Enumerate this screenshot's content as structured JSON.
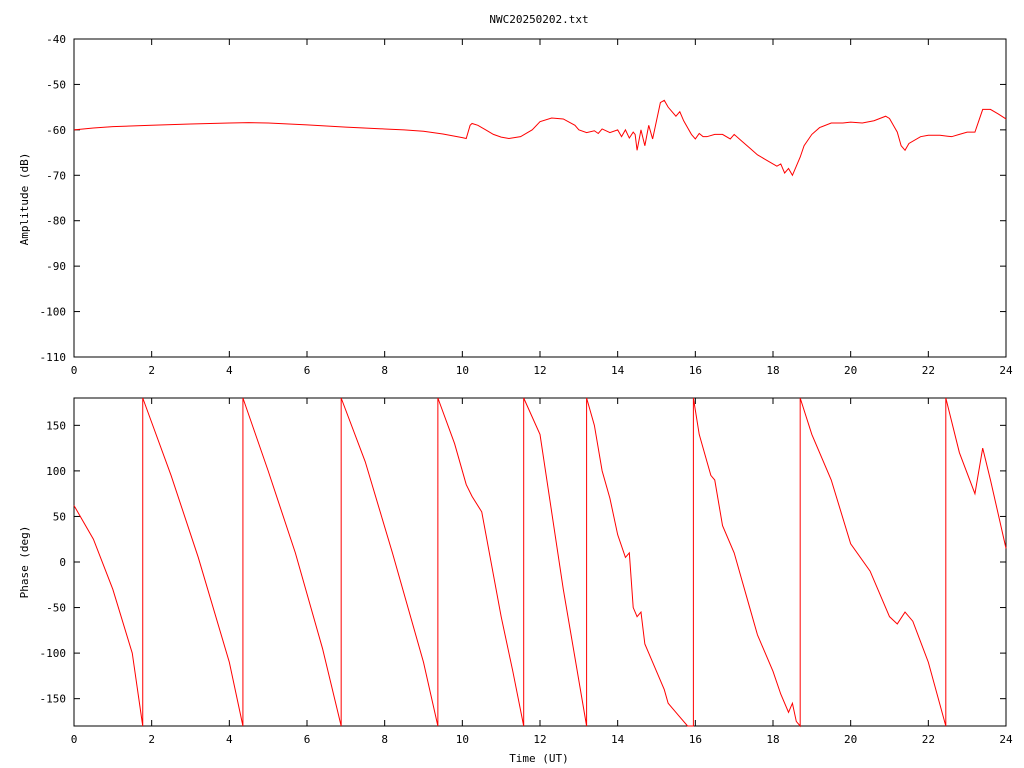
{
  "title": "NWC20250202.txt",
  "line_color": "#ff0000",
  "axis_color": "#000000",
  "chart_data": [
    {
      "type": "line",
      "xlabel": "",
      "ylabel": "Amplitude (dB)",
      "xlim": [
        0,
        24
      ],
      "ylim": [
        -110,
        -40
      ],
      "xticks": [
        0,
        2,
        4,
        6,
        8,
        10,
        12,
        14,
        16,
        18,
        20,
        22,
        24
      ],
      "yticks": [
        -40,
        -50,
        -60,
        -70,
        -80,
        -90,
        -100,
        -110
      ],
      "tick_labels_y": [
        "-40",
        "-50",
        "-60",
        "-70",
        "-80",
        "-90",
        "-100",
        "-110"
      ],
      "grid": false,
      "series": [
        {
          "x": [
            0,
            0.5,
            1,
            2,
            3,
            4,
            4.5,
            5,
            6,
            7,
            8,
            8.5,
            9,
            9.5,
            10,
            10.1,
            10.2,
            10.25,
            10.4,
            10.6,
            10.8,
            11,
            11.2,
            11.5,
            11.8,
            12,
            12.3,
            12.6,
            12.9,
            13,
            13.2,
            13.4,
            13.5,
            13.6,
            13.8,
            14,
            14.1,
            14.2,
            14.3,
            14.4,
            14.45,
            14.5,
            14.6,
            14.7,
            14.8,
            14.9,
            15,
            15.1,
            15.2,
            15.3,
            15.4,
            15.5,
            15.6,
            15.7,
            15.8,
            15.9,
            16,
            16.1,
            16.2,
            16.3,
            16.5,
            16.7,
            16.9,
            17,
            17.2,
            17.4,
            17.6,
            17.8,
            18,
            18.1,
            18.2,
            18.3,
            18.4,
            18.5,
            18.6,
            18.7,
            18.8,
            19,
            19.2,
            19.5,
            19.8,
            20,
            20.3,
            20.6,
            20.9,
            21,
            21.2,
            21.3,
            21.4,
            21.5,
            21.8,
            22,
            22.3,
            22.5,
            22.6,
            22.8,
            23,
            23.2,
            23.4,
            23.6,
            23.8,
            24
          ],
          "values": [
            -60,
            -59.6,
            -59.3,
            -59,
            -58.7,
            -58.5,
            -58.4,
            -58.5,
            -58.9,
            -59.4,
            -59.8,
            -60,
            -60.3,
            -60.9,
            -61.7,
            -61.9,
            -59,
            -58.6,
            -59,
            -60,
            -61,
            -61.6,
            -61.9,
            -61.5,
            -60,
            -58.2,
            -57.4,
            -57.6,
            -59,
            -60,
            -60.6,
            -60.2,
            -60.8,
            -59.8,
            -60.6,
            -60,
            -61.5,
            -60,
            -61.8,
            -60.5,
            -61,
            -64.5,
            -60,
            -63.5,
            -59,
            -62,
            -58,
            -54,
            -53.5,
            -55,
            -56,
            -57,
            -56,
            -58,
            -59.5,
            -61,
            -62,
            -60.8,
            -61.5,
            -61.5,
            -61,
            -61,
            -62,
            -61,
            -62.5,
            -64,
            -65.5,
            -66.5,
            -67.5,
            -68,
            -67.5,
            -69.5,
            -68.5,
            -70,
            -68,
            -66,
            -63.5,
            -61,
            -59.5,
            -58.5,
            -58.5,
            -58.3,
            -58.5,
            -58,
            -57,
            -57.5,
            -60.5,
            -63.5,
            -64.5,
            -63,
            -61.5,
            -61.2,
            -61.2,
            -61.4,
            -61.5,
            -61,
            -60.5,
            -60.5,
            -55.5,
            -55.5,
            -56.5,
            -57.6
          ]
        }
      ]
    },
    {
      "type": "line",
      "xlabel": "Time (UT)",
      "ylabel": "Phase (deg)",
      "xlim": [
        0,
        24
      ],
      "ylim": [
        -180,
        180
      ],
      "xticks": [
        0,
        2,
        4,
        6,
        8,
        10,
        12,
        14,
        16,
        18,
        20,
        22,
        24
      ],
      "yticks": [
        150,
        100,
        50,
        0,
        -50,
        -100,
        -150
      ],
      "tick_labels_y": [
        "150",
        "100",
        "50",
        "0",
        "-50",
        "-100",
        "-150"
      ],
      "grid": false,
      "series": [
        {
          "x": [
            0,
            0.5,
            1,
            1.5,
            1.77,
            1.77,
            2.5,
            3.2,
            4,
            4.35,
            4.35,
            5,
            5.7,
            6.4,
            6.88,
            6.88,
            7.5,
            8.2,
            9,
            9.37,
            9.37,
            9.8,
            10.1,
            10.25,
            10.5,
            11,
            11.3,
            11.58,
            11.58,
            12,
            12.6,
            13.2,
            13.2,
            13.4,
            13.6,
            13.8,
            14,
            14.2,
            14.3,
            14.4,
            14.5,
            14.6,
            14.7,
            14.8,
            14.9,
            15,
            15.2,
            15.3,
            15.4,
            15.6,
            15.8,
            15.95,
            15.95,
            16.1,
            16.3,
            16.4,
            16.5,
            16.7,
            17,
            17.2,
            17.4,
            17.6,
            17.8,
            18,
            18.2,
            18.4,
            18.5,
            18.6,
            18.7,
            18.7,
            19,
            19.5,
            20,
            20.5,
            21,
            21.2,
            21.4,
            21.6,
            22,
            22.45,
            22.45,
            22.8,
            23.2,
            23.4,
            23.6,
            24
          ],
          "values": [
            62,
            25,
            -30,
            -100,
            -180,
            180,
            95,
            5,
            -110,
            -180,
            180,
            100,
            10,
            -95,
            -180,
            180,
            110,
            10,
            -110,
            -180,
            180,
            130,
            85,
            72,
            55,
            -60,
            -120,
            -180,
            180,
            140,
            -30,
            -180,
            180,
            150,
            100,
            70,
            30,
            5,
            10,
            -50,
            -60,
            -55,
            -90,
            -100,
            -110,
            -120,
            -140,
            -155,
            -160,
            -170,
            -180,
            -180,
            180,
            140,
            110,
            95,
            90,
            40,
            10,
            -20,
            -50,
            -80,
            -100,
            -120,
            -145,
            -165,
            -155,
            -175,
            -180,
            180,
            140,
            90,
            20,
            -10,
            -60,
            -68,
            -55,
            -65,
            -110,
            -180,
            180,
            120,
            75,
            125,
            90,
            15
          ]
        }
      ]
    }
  ]
}
